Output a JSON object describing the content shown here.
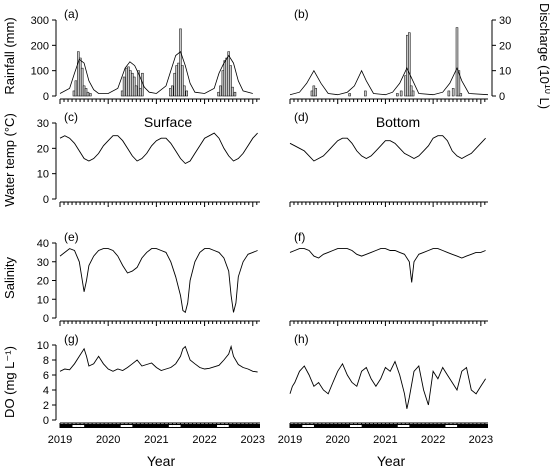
{
  "labels": {
    "ylab_rain": "Rainfall (mm)",
    "ylab_dis_pre": "Discharge (10",
    "ylab_dis_exp": "10",
    "ylab_dis_post": " L)",
    "ylab_temp": "Water temp (°C)",
    "ylab_sal": "Salinity",
    "ylab_do": "DO (mg L⁻¹)",
    "surface": "Surface",
    "bottom": "Bottom",
    "xlabel": "Year"
  },
  "chart_data": [
    {
      "panel": "(a)",
      "type": "bar",
      "ylim": [
        0,
        300
      ],
      "yticks": [
        0,
        100,
        200,
        300
      ],
      "x_domain": [
        2019.0,
        2023.15
      ],
      "bars_x": [
        2019.29,
        2019.33,
        2019.38,
        2019.42,
        2019.46,
        2019.5,
        2019.54,
        2019.58,
        2019.63,
        2020.29,
        2020.33,
        2020.38,
        2020.42,
        2020.46,
        2020.5,
        2020.54,
        2020.58,
        2020.63,
        2020.67,
        2020.71,
        2021.29,
        2021.33,
        2021.38,
        2021.42,
        2021.46,
        2021.5,
        2021.54,
        2021.58,
        2021.63,
        2022.29,
        2022.33,
        2022.38,
        2022.42,
        2022.46,
        2022.5,
        2022.54,
        2022.58,
        2022.63
      ],
      "bars_y": [
        20,
        60,
        175,
        150,
        110,
        40,
        30,
        15,
        10,
        20,
        75,
        110,
        115,
        100,
        90,
        75,
        40,
        100,
        30,
        90,
        30,
        40,
        90,
        120,
        130,
        265,
        120,
        40,
        20,
        15,
        40,
        100,
        140,
        150,
        175,
        120,
        35,
        15
      ],
      "smooth_x": [
        2019.0,
        2019.2,
        2019.3,
        2019.4,
        2019.5,
        2019.6,
        2019.7,
        2019.8,
        2020.0,
        2020.2,
        2020.35,
        2020.45,
        2020.55,
        2020.65,
        2020.75,
        2020.85,
        2021.0,
        2021.2,
        2021.3,
        2021.4,
        2021.5,
        2021.6,
        2021.7,
        2021.8,
        2022.0,
        2022.2,
        2022.3,
        2022.4,
        2022.5,
        2022.6,
        2022.7,
        2022.8,
        2023.0
      ],
      "smooth_y": [
        10,
        30,
        90,
        145,
        130,
        60,
        25,
        10,
        10,
        30,
        110,
        135,
        120,
        80,
        35,
        15,
        10,
        40,
        100,
        160,
        175,
        120,
        50,
        15,
        10,
        30,
        90,
        130,
        160,
        130,
        60,
        20,
        10
      ]
    },
    {
      "panel": "(b)",
      "type": "bar",
      "ylim": [
        0,
        30
      ],
      "yticks": [
        0,
        10,
        20,
        30
      ],
      "x_domain": [
        2019.0,
        2023.15
      ],
      "bars_x": [
        2019.46,
        2019.5,
        2019.54,
        2020.25,
        2020.58,
        2021.25,
        2021.33,
        2021.42,
        2021.46,
        2021.5,
        2021.54,
        2021.58,
        2022.33,
        2022.42,
        2022.5,
        2022.54,
        2022.58
      ],
      "bars_y": [
        2,
        4,
        3,
        1,
        2,
        1,
        2,
        8,
        24,
        25,
        4,
        2,
        2,
        3,
        27,
        10,
        1
      ],
      "smooth_x": [
        2019.0,
        2019.2,
        2019.35,
        2019.5,
        2019.65,
        2019.8,
        2020.0,
        2020.2,
        2020.35,
        2020.5,
        2020.6,
        2020.75,
        2021.0,
        2021.15,
        2021.3,
        2021.45,
        2021.55,
        2021.7,
        2022.0,
        2022.2,
        2022.35,
        2022.5,
        2022.6,
        2022.75,
        2023.15
      ],
      "smooth_y": [
        0.5,
        1.5,
        5,
        10,
        5,
        1,
        0.5,
        1.5,
        4,
        10,
        6,
        1,
        0.5,
        1.5,
        5,
        11,
        7,
        1,
        0.5,
        1.5,
        5,
        11,
        6,
        1,
        0.5
      ]
    },
    {
      "panel": "(c)",
      "type": "line",
      "ylim": [
        0,
        30
      ],
      "yticks": [
        0,
        10,
        20,
        30
      ],
      "x": [
        2019.0,
        2019.1,
        2019.2,
        2019.3,
        2019.4,
        2019.5,
        2019.6,
        2019.7,
        2019.8,
        2019.9,
        2020.0,
        2020.1,
        2020.2,
        2020.3,
        2020.4,
        2020.5,
        2020.6,
        2020.7,
        2020.8,
        2020.9,
        2021.0,
        2021.1,
        2021.2,
        2021.3,
        2021.4,
        2021.5,
        2021.6,
        2021.7,
        2021.8,
        2021.9,
        2022.0,
        2022.1,
        2022.2,
        2022.3,
        2022.4,
        2022.5,
        2022.6,
        2022.7,
        2022.8,
        2022.9,
        2023.0,
        2023.1
      ],
      "y": [
        24,
        25,
        24,
        22,
        19,
        16,
        15,
        16,
        18,
        21,
        23,
        25,
        25,
        23,
        20,
        17,
        15,
        16,
        18,
        21,
        23,
        24,
        24,
        22,
        19,
        16,
        14,
        15,
        18,
        21,
        24,
        25,
        26,
        24,
        20,
        17,
        15,
        16,
        18,
        21,
        24,
        26
      ]
    },
    {
      "panel": "(d)",
      "type": "line",
      "ylim": [
        0,
        30
      ],
      "yticks": [
        0,
        10,
        20,
        30
      ],
      "x": [
        2019.0,
        2019.1,
        2019.2,
        2019.3,
        2019.4,
        2019.5,
        2019.6,
        2019.7,
        2019.8,
        2019.9,
        2020.0,
        2020.1,
        2020.2,
        2020.3,
        2020.4,
        2020.5,
        2020.6,
        2020.7,
        2020.8,
        2020.9,
        2021.0,
        2021.1,
        2021.2,
        2021.3,
        2021.4,
        2021.5,
        2021.6,
        2021.7,
        2021.8,
        2021.9,
        2022.0,
        2022.1,
        2022.2,
        2022.3,
        2022.4,
        2022.5,
        2022.6,
        2022.7,
        2022.8,
        2022.9,
        2023.0,
        2023.1
      ],
      "y": [
        22,
        21,
        20,
        19,
        17,
        15,
        16,
        17,
        19,
        21,
        23,
        24,
        24,
        22,
        19,
        17,
        16,
        17,
        19,
        21,
        23,
        23,
        22,
        20,
        18,
        17,
        16,
        17,
        19,
        21,
        24,
        25,
        25,
        23,
        19,
        17,
        16,
        17,
        18,
        20,
        22,
        24
      ]
    },
    {
      "panel": "(e)",
      "type": "line",
      "ylim": [
        0,
        40
      ],
      "yticks": [
        0,
        10,
        20,
        30,
        40
      ],
      "x": [
        2019.0,
        2019.1,
        2019.2,
        2019.3,
        2019.4,
        2019.45,
        2019.5,
        2019.55,
        2019.6,
        2019.7,
        2019.8,
        2019.9,
        2020.0,
        2020.1,
        2020.2,
        2020.3,
        2020.4,
        2020.5,
        2020.6,
        2020.7,
        2020.8,
        2020.9,
        2021.0,
        2021.1,
        2021.2,
        2021.3,
        2021.4,
        2021.5,
        2021.55,
        2021.6,
        2021.65,
        2021.7,
        2021.8,
        2021.9,
        2022.0,
        2022.1,
        2022.2,
        2022.3,
        2022.4,
        2022.5,
        2022.55,
        2022.6,
        2022.65,
        2022.7,
        2022.8,
        2022.9,
        2023.0,
        2023.1
      ],
      "y": [
        33,
        35,
        37,
        36,
        30,
        22,
        14,
        20,
        28,
        33,
        36,
        37,
        37,
        36,
        33,
        28,
        24,
        25,
        27,
        32,
        35,
        37,
        37,
        36,
        35,
        30,
        22,
        12,
        4,
        3,
        8,
        20,
        30,
        35,
        37,
        37,
        36,
        35,
        32,
        25,
        12,
        3,
        8,
        22,
        30,
        34,
        35,
        36
      ]
    },
    {
      "panel": "(f)",
      "type": "line",
      "ylim": [
        0,
        40
      ],
      "yticks": [
        0,
        10,
        20,
        30,
        40
      ],
      "x": [
        2019.0,
        2019.1,
        2019.2,
        2019.3,
        2019.4,
        2019.5,
        2019.6,
        2019.7,
        2019.8,
        2019.9,
        2020.0,
        2020.1,
        2020.2,
        2020.3,
        2020.4,
        2020.5,
        2020.6,
        2020.7,
        2020.8,
        2020.9,
        2021.0,
        2021.1,
        2021.2,
        2021.3,
        2021.4,
        2021.5,
        2021.55,
        2021.6,
        2021.7,
        2021.8,
        2021.9,
        2022.0,
        2022.1,
        2022.2,
        2022.3,
        2022.4,
        2022.5,
        2022.6,
        2022.7,
        2022.8,
        2022.9,
        2023.0,
        2023.1
      ],
      "y": [
        35,
        36,
        37,
        37,
        36,
        33,
        32,
        34,
        35,
        36,
        37,
        37,
        37,
        36,
        34,
        33,
        34,
        35,
        36,
        37,
        37,
        36,
        36,
        35,
        34,
        30,
        19,
        30,
        34,
        35,
        36,
        37,
        37,
        36,
        35,
        34,
        33,
        32,
        33,
        34,
        35,
        35,
        36
      ]
    },
    {
      "panel": "(g)",
      "type": "line",
      "ylim": [
        0,
        10
      ],
      "yticks": [
        0,
        2,
        4,
        6,
        8,
        10
      ],
      "x": [
        2019.0,
        2019.1,
        2019.2,
        2019.3,
        2019.4,
        2019.5,
        2019.55,
        2019.6,
        2019.7,
        2019.8,
        2019.9,
        2020.0,
        2020.1,
        2020.2,
        2020.3,
        2020.4,
        2020.5,
        2020.6,
        2020.7,
        2020.8,
        2020.9,
        2021.0,
        2021.1,
        2021.2,
        2021.3,
        2021.4,
        2021.5,
        2021.55,
        2021.6,
        2021.7,
        2021.8,
        2021.9,
        2022.0,
        2022.1,
        2022.2,
        2022.3,
        2022.4,
        2022.5,
        2022.55,
        2022.6,
        2022.7,
        2022.8,
        2022.9,
        2023.0,
        2023.1
      ],
      "y": [
        6.5,
        6.8,
        6.7,
        7.5,
        8.5,
        9.5,
        8.5,
        7.2,
        7.5,
        8.5,
        7.5,
        6.8,
        6.5,
        6.8,
        6.6,
        7.0,
        7.5,
        8.0,
        7.2,
        7.4,
        7.6,
        7.0,
        6.6,
        6.8,
        7.0,
        7.5,
        8.5,
        9.5,
        9.8,
        8.0,
        7.5,
        7.0,
        6.8,
        6.9,
        7.1,
        7.3,
        8.0,
        8.8,
        9.8,
        8.5,
        7.4,
        7.0,
        6.8,
        6.5,
        6.4
      ]
    },
    {
      "panel": "(h)",
      "type": "line",
      "ylim": [
        0,
        10
      ],
      "yticks": [
        2,
        4,
        6,
        8,
        10
      ],
      "x": [
        2019.0,
        2019.05,
        2019.1,
        2019.2,
        2019.3,
        2019.4,
        2019.5,
        2019.6,
        2019.7,
        2019.8,
        2019.9,
        2020.0,
        2020.1,
        2020.2,
        2020.3,
        2020.4,
        2020.5,
        2020.6,
        2020.7,
        2020.8,
        2020.9,
        2021.0,
        2021.1,
        2021.2,
        2021.3,
        2021.4,
        2021.45,
        2021.5,
        2021.6,
        2021.7,
        2021.8,
        2021.9,
        2022.0,
        2022.1,
        2022.2,
        2022.3,
        2022.4,
        2022.5,
        2022.6,
        2022.7,
        2022.8,
        2022.9,
        2023.0,
        2023.1
      ],
      "y": [
        3.5,
        4.5,
        5.0,
        6.5,
        7.2,
        6.0,
        4.5,
        5.0,
        4.0,
        3.5,
        5.0,
        6.5,
        7.5,
        6.0,
        5.0,
        4.5,
        6.5,
        7.0,
        5.5,
        4.5,
        5.5,
        7.0,
        6.5,
        7.8,
        6.0,
        3.5,
        1.5,
        3.0,
        6.5,
        7.2,
        4.0,
        2.0,
        6.5,
        5.5,
        7.0,
        6.0,
        5.0,
        4.0,
        6.5,
        7.0,
        4.0,
        3.5,
        4.5,
        5.5
      ]
    }
  ],
  "x_ticks": [
    "2019",
    "2020",
    "2021",
    "2022",
    "2023"
  ]
}
